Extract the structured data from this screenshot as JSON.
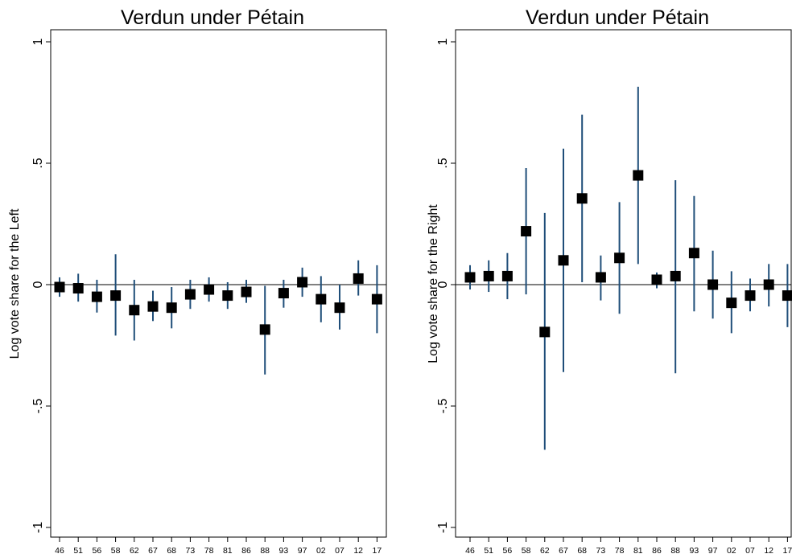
{
  "colors": {
    "ci_line": "#1f4e79",
    "marker": "#000000"
  },
  "chart_data": [
    {
      "type": "scatter",
      "title": "Verdun under Pétain",
      "ylabel": "Log vote share for the Left",
      "xlabel": "",
      "ylim": [
        -1.0,
        1.0
      ],
      "yticks": [
        {
          "value": 1,
          "label": "1"
        },
        {
          "value": 0.5,
          "label": ".5"
        },
        {
          "value": 0,
          "label": "0"
        },
        {
          "value": -0.5,
          "label": "-.5"
        },
        {
          "value": -1,
          "label": "-1"
        }
      ],
      "categories": [
        "46",
        "51",
        "56",
        "58",
        "62",
        "67",
        "68",
        "73",
        "78",
        "81",
        "86",
        "88",
        "93",
        "97",
        "02",
        "07",
        "12",
        "17"
      ],
      "points": [
        {
          "x": "46",
          "y": -0.01,
          "lo": -0.05,
          "hi": 0.03
        },
        {
          "x": "51",
          "y": -0.015,
          "lo": -0.07,
          "hi": 0.045
        },
        {
          "x": "56",
          "y": -0.05,
          "lo": -0.115,
          "hi": 0.02
        },
        {
          "x": "58",
          "y": -0.045,
          "lo": -0.21,
          "hi": 0.125
        },
        {
          "x": "62",
          "y": -0.105,
          "lo": -0.23,
          "hi": 0.02
        },
        {
          "x": "67",
          "y": -0.09,
          "lo": -0.15,
          "hi": -0.025
        },
        {
          "x": "68",
          "y": -0.095,
          "lo": -0.18,
          "hi": -0.01
        },
        {
          "x": "73",
          "y": -0.04,
          "lo": -0.1,
          "hi": 0.02
        },
        {
          "x": "78",
          "y": -0.02,
          "lo": -0.07,
          "hi": 0.03
        },
        {
          "x": "81",
          "y": -0.045,
          "lo": -0.1,
          "hi": 0.01
        },
        {
          "x": "86",
          "y": -0.03,
          "lo": -0.075,
          "hi": 0.02
        },
        {
          "x": "88",
          "y": -0.185,
          "lo": -0.37,
          "hi": -0.005
        },
        {
          "x": "93",
          "y": -0.035,
          "lo": -0.095,
          "hi": 0.02
        },
        {
          "x": "97",
          "y": 0.01,
          "lo": -0.05,
          "hi": 0.07
        },
        {
          "x": "02",
          "y": -0.06,
          "lo": -0.155,
          "hi": 0.035
        },
        {
          "x": "07",
          "y": -0.095,
          "lo": -0.185,
          "hi": 0.0
        },
        {
          "x": "12",
          "y": 0.025,
          "lo": -0.045,
          "hi": 0.1
        },
        {
          "x": "17",
          "y": -0.06,
          "lo": -0.2,
          "hi": 0.08
        }
      ],
      "grid": false,
      "reference_line": 0
    },
    {
      "type": "scatter",
      "title": "Verdun under Pétain",
      "ylabel": "Log vote share for the Right",
      "xlabel": "",
      "ylim": [
        -1.0,
        1.0
      ],
      "yticks": [
        {
          "value": 1,
          "label": "1"
        },
        {
          "value": 0.5,
          "label": ".5"
        },
        {
          "value": 0,
          "label": "0"
        },
        {
          "value": -0.5,
          "label": "-.5"
        },
        {
          "value": -1,
          "label": "-1"
        }
      ],
      "categories": [
        "46",
        "51",
        "56",
        "58",
        "62",
        "67",
        "68",
        "73",
        "78",
        "81",
        "86",
        "88",
        "93",
        "97",
        "02",
        "07",
        "12",
        "17"
      ],
      "points": [
        {
          "x": "46",
          "y": 0.03,
          "lo": -0.02,
          "hi": 0.08
        },
        {
          "x": "51",
          "y": 0.035,
          "lo": -0.03,
          "hi": 0.1
        },
        {
          "x": "56",
          "y": 0.035,
          "lo": -0.06,
          "hi": 0.13
        },
        {
          "x": "58",
          "y": 0.22,
          "lo": -0.04,
          "hi": 0.48
        },
        {
          "x": "62",
          "y": -0.195,
          "lo": -0.68,
          "hi": 0.295
        },
        {
          "x": "67",
          "y": 0.1,
          "lo": -0.36,
          "hi": 0.56
        },
        {
          "x": "68",
          "y": 0.355,
          "lo": 0.01,
          "hi": 0.7
        },
        {
          "x": "73",
          "y": 0.03,
          "lo": -0.065,
          "hi": 0.12
        },
        {
          "x": "78",
          "y": 0.11,
          "lo": -0.12,
          "hi": 0.34
        },
        {
          "x": "81",
          "y": 0.45,
          "lo": 0.085,
          "hi": 0.815
        },
        {
          "x": "86",
          "y": 0.02,
          "lo": -0.015,
          "hi": 0.05
        },
        {
          "x": "88",
          "y": 0.035,
          "lo": -0.365,
          "hi": 0.43
        },
        {
          "x": "93",
          "y": 0.13,
          "lo": -0.11,
          "hi": 0.365
        },
        {
          "x": "97",
          "y": 0.0,
          "lo": -0.14,
          "hi": 0.14
        },
        {
          "x": "02",
          "y": -0.075,
          "lo": -0.2,
          "hi": 0.055
        },
        {
          "x": "07",
          "y": -0.045,
          "lo": -0.11,
          "hi": 0.025
        },
        {
          "x": "12",
          "y": 0.0,
          "lo": -0.09,
          "hi": 0.085
        },
        {
          "x": "17",
          "y": -0.045,
          "lo": -0.175,
          "hi": 0.085
        }
      ],
      "grid": false,
      "reference_line": 0
    }
  ]
}
